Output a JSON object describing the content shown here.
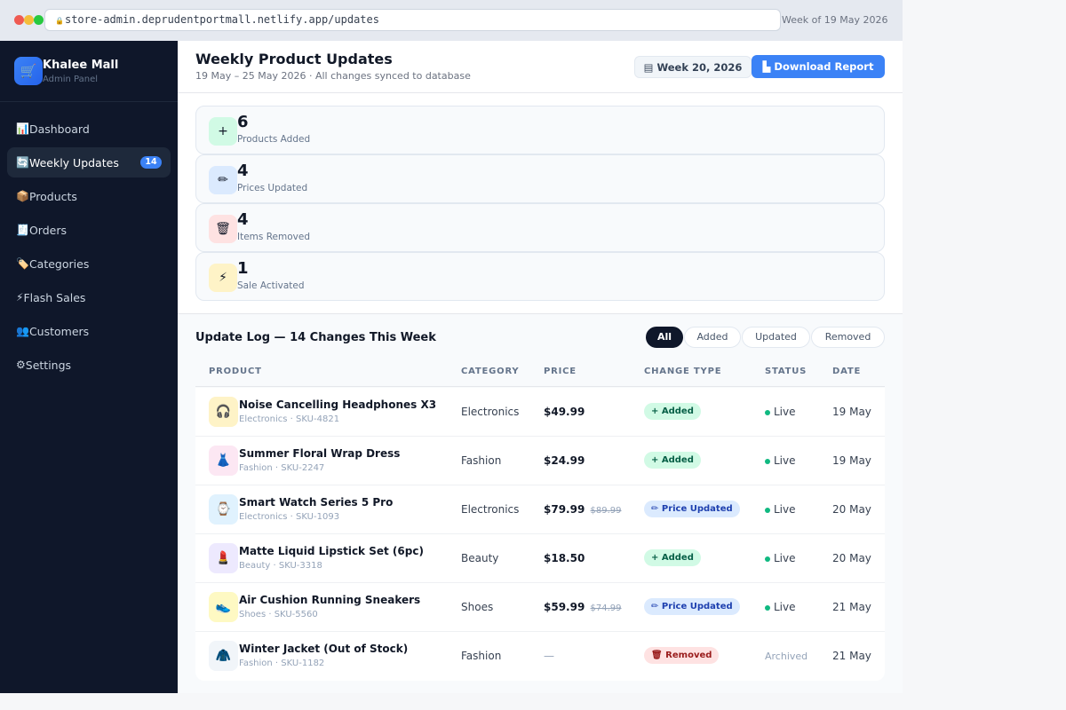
{
  "browser": {
    "url": "store-admin.deprudentportmall.netlify.app/updates",
    "lock_icon": "🔒",
    "week_of": "Week of 19 May 2026"
  },
  "brand": {
    "logo_icon": "🛒",
    "name": "Khalee Mall",
    "subtitle": "Admin Panel"
  },
  "sidebar": {
    "items": [
      {
        "icon": "📊",
        "label": "Dashboard",
        "active": false
      },
      {
        "icon": "🔄",
        "label": "Weekly Updates",
        "active": true,
        "badge": "14"
      },
      {
        "icon": "📦",
        "label": "Products",
        "active": false
      },
      {
        "icon": "🧾",
        "label": "Orders",
        "active": false
      },
      {
        "icon": "🏷️",
        "label": "Categories",
        "active": false
      },
      {
        "icon": "⚡",
        "label": "Flash Sales",
        "active": false
      },
      {
        "icon": "👥",
        "label": "Customers",
        "active": false
      },
      {
        "icon": "⚙",
        "label": "Settings",
        "active": false
      }
    ]
  },
  "header": {
    "title": "Weekly Product Updates",
    "subtitle": "19 May – 25 May 2026 · All changes synced to database",
    "week_button": "▤ Week 20, 2026",
    "download_button": "▙ Download Report"
  },
  "stats": [
    {
      "icon": "+",
      "value": "6",
      "label": "Products Added",
      "bg": "#d1fae5"
    },
    {
      "icon": "✏",
      "value": "4",
      "label": "Prices Updated",
      "bg": "#dbeafe"
    },
    {
      "icon": "🗑",
      "value": "4",
      "label": "Items Removed",
      "bg": "#fee2e2"
    },
    {
      "icon": "⚡",
      "value": "1",
      "label": "Sale Activated",
      "bg": "#fef3c7"
    }
  ],
  "log": {
    "title": "Update Log — 14 Changes This Week",
    "filters": [
      "All",
      "Added",
      "Updated",
      "Removed"
    ],
    "active_filter": "All",
    "columns": [
      "PRODUCT",
      "CATEGORY",
      "PRICE",
      "CHANGE TYPE",
      "STATUS",
      "DATE"
    ],
    "rows": [
      {
        "icon": "🎧",
        "icon_bg": "#fef3c7",
        "name": "Noise Cancelling Headphones X3",
        "meta": "Electronics · SKU-4821",
        "category": "Electronics",
        "price": "$49.99",
        "old_price": "",
        "change": "+ Added",
        "change_type": "added",
        "status": "Live",
        "date": "19 May"
      },
      {
        "icon": "👗",
        "icon_bg": "#fce7f3",
        "name": "Summer Floral Wrap Dress",
        "meta": "Fashion · SKU-2247",
        "category": "Fashion",
        "price": "$24.99",
        "old_price": "",
        "change": "+ Added",
        "change_type": "added",
        "status": "Live",
        "date": "19 May"
      },
      {
        "icon": "⌚",
        "icon_bg": "#e0f2fe",
        "name": "Smart Watch Series 5 Pro",
        "meta": "Electronics · SKU-1093",
        "category": "Electronics",
        "price": "$79.99",
        "old_price": "$89.99",
        "change": "✏ Price Updated",
        "change_type": "updated",
        "status": "Live",
        "date": "20 May"
      },
      {
        "icon": "💄",
        "icon_bg": "#ede9fe",
        "name": "Matte Liquid Lipstick Set (6pc)",
        "meta": "Beauty · SKU-3318",
        "category": "Beauty",
        "price": "$18.50",
        "old_price": "",
        "change": "+ Added",
        "change_type": "added",
        "status": "Live",
        "date": "20 May"
      },
      {
        "icon": "👟",
        "icon_bg": "#fef9c3",
        "name": "Air Cushion Running Sneakers",
        "meta": "Shoes · SKU-5560",
        "category": "Shoes",
        "price": "$59.99",
        "old_price": "$74.99",
        "change": "✏ Price Updated",
        "change_type": "updated",
        "status": "Live",
        "date": "21 May"
      },
      {
        "icon": "🧥",
        "icon_bg": "#f1f5f9",
        "name": "Winter Jacket (Out of Stock)",
        "meta": "Fashion · SKU-1182",
        "category": "Fashion",
        "price": "—",
        "old_price": "",
        "change": "🗑 Removed",
        "change_type": "removed",
        "status": "Archived",
        "date": "21 May"
      }
    ]
  }
}
